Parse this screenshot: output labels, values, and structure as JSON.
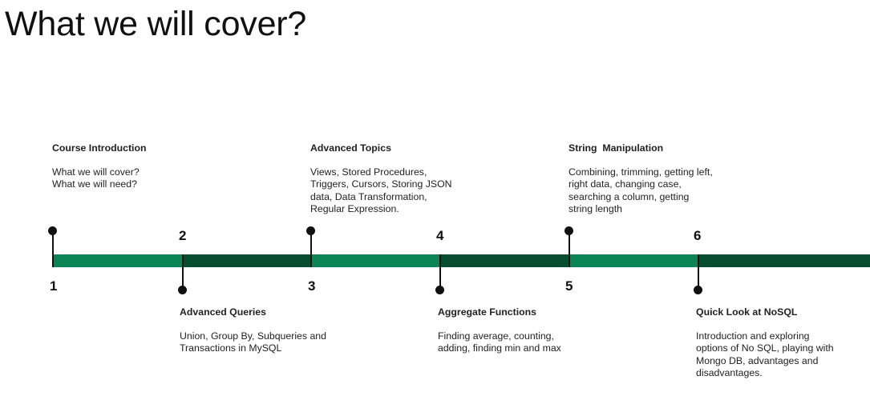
{
  "title": "What we will cover?",
  "colors": {
    "segment_light": "#0b8556",
    "segment_dark": "#064d31",
    "marker": "#111111"
  },
  "steps": [
    {
      "number": "1",
      "title": "Course Introduction",
      "description": [
        "What we will cover?",
        "What we will need?"
      ]
    },
    {
      "number": "2",
      "title": "Advanced Queries",
      "description": [
        "Union, Group By, Subqueries and",
        "Transactions in MySQL"
      ]
    },
    {
      "number": "3",
      "title": "Advanced Topics",
      "description": [
        "Views, Stored Procedures,",
        "Triggers, Cursors, Storing JSON",
        "data, Data Transformation,",
        "Regular Expression."
      ]
    },
    {
      "number": "4",
      "title": "Aggregate Functions",
      "description": [
        "Finding average, counting,",
        "adding, finding min and max"
      ]
    },
    {
      "number": "5",
      "title": "String  Manipulation",
      "description": [
        "Combining, trimming, getting left,",
        "right data, changing case,",
        "searching a column, getting",
        "string length"
      ]
    },
    {
      "number": "6",
      "title": "Quick Look at NoSQL",
      "description": [
        "Introduction and exploring",
        "options of No SQL, playing with",
        "Mongo DB, advantages and",
        "disadvantages."
      ]
    }
  ]
}
